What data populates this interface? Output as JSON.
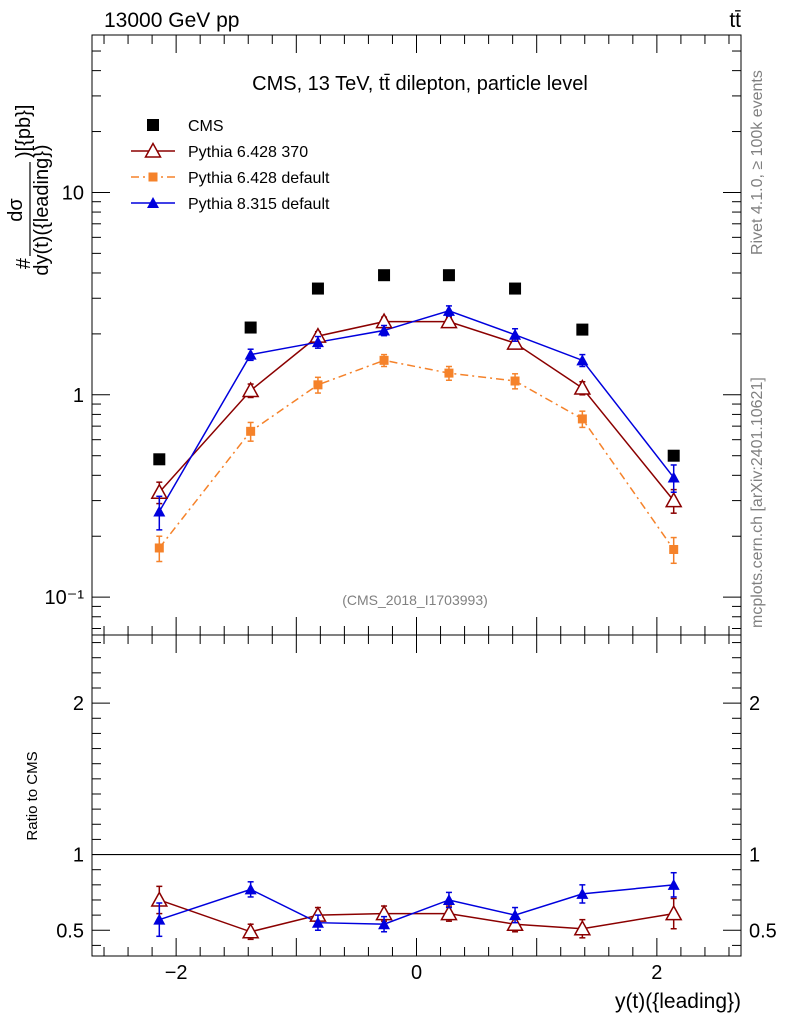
{
  "header": {
    "energy_label": "13000 GeV pp",
    "process_label": "tt̄"
  },
  "side_labels": {
    "rivet": "Rivet 4.1.0, ≥ 100k events",
    "source": "mcplots.cern.ch [arXiv:2401.10621]"
  },
  "chart_data": [
    {
      "type": "scatter",
      "panel": "main",
      "title": "CMS, 13 TeV, tt̄ dilepton, particle level",
      "watermark": "(CMS_2018_I1703993)",
      "ylabel_numerator": "dσ",
      "ylabel_denominator": "dy(t)({leading})",
      "ylabel_prefix": "#",
      "ylabel_units": ")[{pb}]",
      "yscale": "log",
      "ylim": [
        0.065,
        60
      ],
      "xlim": [
        -2.7,
        2.7
      ],
      "ytick_labels": [
        "10⁻¹",
        "1",
        "10"
      ],
      "ytick_values": [
        0.1,
        1,
        10
      ],
      "x": [
        -2.14,
        -1.38,
        -0.82,
        -0.27,
        0.27,
        0.82,
        1.38,
        2.14
      ],
      "series": [
        {
          "name": "CMS",
          "color": "#000000",
          "marker": "square",
          "values": [
            0.48,
            2.15,
            3.35,
            3.9,
            3.9,
            3.35,
            2.1,
            0.5
          ],
          "errors": [
            0,
            0,
            0,
            0,
            0,
            0,
            0,
            0
          ]
        },
        {
          "name": "Pythia 6.428 370",
          "color": "#8b0000",
          "marker": "open-triangle",
          "line": "solid",
          "values": [
            0.33,
            1.05,
            1.95,
            2.3,
            2.3,
            1.8,
            1.08,
            0.3
          ],
          "errors": [
            0.04,
            0.08,
            0.1,
            0.12,
            0.12,
            0.1,
            0.08,
            0.04
          ]
        },
        {
          "name": "Pythia 6.428 default",
          "color": "#f5822a",
          "marker": "filled-square",
          "line": "dashdot",
          "values": [
            0.175,
            0.66,
            1.12,
            1.48,
            1.28,
            1.17,
            0.76,
            0.172
          ],
          "errors": [
            0.025,
            0.07,
            0.1,
            0.1,
            0.1,
            0.1,
            0.07,
            0.025
          ]
        },
        {
          "name": "Pythia 8.315 default",
          "color": "#0000dd",
          "marker": "filled-triangle",
          "line": "solid",
          "values": [
            0.265,
            1.58,
            1.82,
            2.08,
            2.6,
            1.98,
            1.48,
            0.39
          ],
          "errors": [
            0.05,
            0.1,
            0.12,
            0.12,
            0.15,
            0.14,
            0.1,
            0.06
          ]
        }
      ],
      "legend_position": "top-left"
    },
    {
      "type": "line",
      "panel": "ratio",
      "ylabel": "Ratio to CMS",
      "xlabel": "y(t)({leading})",
      "ylim": [
        0.33,
        2.45
      ],
      "xlim": [
        -2.7,
        2.7
      ],
      "ytick_labels": [
        "0.5",
        "1",
        "2"
      ],
      "ytick_values": [
        0.5,
        1,
        2
      ],
      "xtick_labels": [
        "−2",
        "0",
        "2"
      ],
      "xtick_values": [
        -2,
        0,
        2
      ],
      "x": [
        -2.14,
        -1.38,
        -0.82,
        -0.27,
        0.27,
        0.82,
        1.38,
        2.14
      ],
      "series": [
        {
          "name": "Pythia 6.428 370",
          "color": "#8b0000",
          "marker": "open-triangle",
          "values": [
            0.7,
            0.49,
            0.6,
            0.61,
            0.61,
            0.54,
            0.51,
            0.61
          ],
          "errors": [
            0.09,
            0.05,
            0.05,
            0.05,
            0.05,
            0.05,
            0.06,
            0.1
          ]
        },
        {
          "name": "Pythia 8.315 default",
          "color": "#0000dd",
          "marker": "filled-triangle",
          "values": [
            0.57,
            0.77,
            0.55,
            0.54,
            0.7,
            0.6,
            0.74,
            0.8
          ],
          "errors": [
            0.11,
            0.05,
            0.05,
            0.05,
            0.05,
            0.05,
            0.06,
            0.08
          ]
        }
      ]
    }
  ]
}
